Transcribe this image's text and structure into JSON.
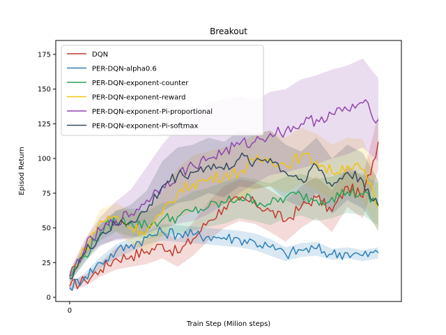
{
  "chart_data": {
    "type": "line",
    "title": "Breakout",
    "xlabel": "Train Step (Milion steps)",
    "ylabel": "Episod Return",
    "x": [
      0,
      5,
      10,
      15,
      20,
      25,
      30,
      35,
      40,
      45,
      50,
      55,
      60,
      65,
      70,
      75,
      80,
      85,
      90,
      95,
      100
    ],
    "xticks": [
      {
        "value": 0,
        "label": "0"
      }
    ],
    "xlim": [
      -4.5,
      107.5
    ],
    "ylim": [
      -3,
      185
    ],
    "yticks": [
      0,
      25,
      50,
      75,
      100,
      125,
      150,
      175
    ],
    "grid": false,
    "legend_position": "top-left",
    "series": [
      {
        "name": "DQN",
        "color": "#c0392b",
        "values": [
          8,
          12,
          20,
          28,
          30,
          33,
          38,
          32,
          42,
          55,
          65,
          70,
          68,
          62,
          55,
          65,
          72,
          62,
          80,
          72,
          112
        ],
        "band": [
          3,
          4,
          5,
          8,
          8,
          9,
          10,
          10,
          12,
          14,
          15,
          15,
          15,
          15,
          15,
          15,
          15,
          15,
          15,
          15,
          20
        ]
      },
      {
        "name": "PER-DQN-alpha0.6",
        "color": "#2c7fb8",
        "values": [
          7,
          15,
          25,
          33,
          38,
          43,
          47,
          46,
          45,
          44,
          43,
          42,
          40,
          36,
          31,
          34,
          35,
          31,
          32,
          30,
          32
        ],
        "band": [
          2,
          3,
          4,
          5,
          5,
          5,
          6,
          6,
          6,
          6,
          6,
          6,
          6,
          6,
          5,
          5,
          5,
          4,
          4,
          4,
          4
        ]
      },
      {
        "name": "PER-DQN-exponent-counter",
        "color": "#27a05a",
        "values": [
          15,
          30,
          47,
          55,
          54,
          52,
          56,
          58,
          62,
          65,
          68,
          72,
          70,
          67,
          72,
          74,
          70,
          72,
          76,
          74,
          67
        ],
        "band": [
          3,
          5,
          6,
          8,
          10,
          10,
          12,
          12,
          14,
          14,
          15,
          15,
          15,
          15,
          15,
          15,
          15,
          15,
          15,
          15,
          15
        ]
      },
      {
        "name": "PER-DQN-exponent-reward",
        "color": "#f1c40f",
        "values": [
          16,
          35,
          55,
          58,
          50,
          48,
          60,
          75,
          82,
          85,
          88,
          90,
          98,
          100,
          95,
          102,
          98,
          90,
          95,
          92,
          65
        ],
        "band": [
          4,
          6,
          8,
          10,
          12,
          14,
          16,
          18,
          20,
          20,
          20,
          20,
          20,
          20,
          20,
          20,
          20,
          20,
          20,
          22,
          18
        ]
      },
      {
        "name": "PER-DQN-exponent-Pi-proportional",
        "color": "#8e44ad",
        "values": [
          15,
          36,
          48,
          55,
          60,
          70,
          80,
          88,
          95,
          100,
          105,
          110,
          112,
          118,
          120,
          125,
          128,
          132,
          135,
          140,
          128
        ],
        "band": [
          4,
          6,
          10,
          14,
          18,
          24,
          30,
          35,
          40,
          40,
          38,
          35,
          30,
          30,
          30,
          32,
          32,
          32,
          32,
          32,
          30
        ]
      },
      {
        "name": "PER-DQN-exponent-Pi-softmax",
        "color": "#34495e",
        "values": [
          14,
          32,
          45,
          52,
          55,
          62,
          80,
          88,
          90,
          95,
          92,
          100,
          98,
          100,
          90,
          85,
          95,
          80,
          90,
          84,
          66
        ],
        "band": [
          4,
          6,
          8,
          10,
          12,
          15,
          18,
          20,
          20,
          20,
          20,
          20,
          20,
          20,
          20,
          20,
          20,
          20,
          20,
          20,
          18
        ]
      }
    ]
  }
}
